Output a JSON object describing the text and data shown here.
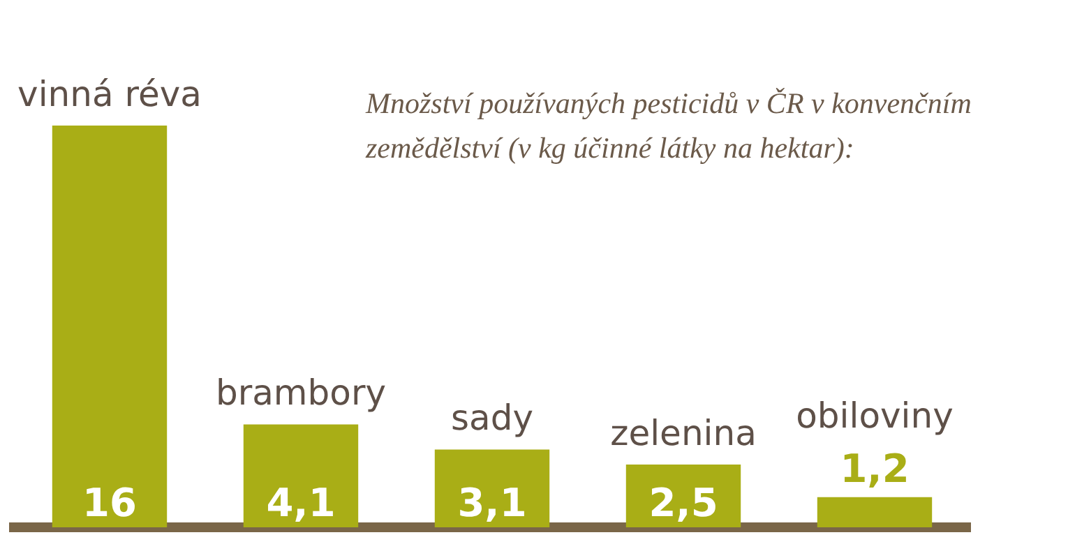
{
  "chart_data": {
    "type": "bar",
    "title": "Množství používaných pesticidů v ČR v konvenčním zemědělství (v kg účinné látky na hektar):",
    "categories": [
      "vinná réva",
      "brambory",
      "sady",
      "zelenina",
      "obiloviny"
    ],
    "values": [
      16,
      4.1,
      3.1,
      2.5,
      1.2
    ],
    "value_labels": [
      "16",
      "4,1",
      "3,1",
      "2,5",
      "1,2"
    ],
    "color": "#a9ae16",
    "legend": false,
    "grid": false
  }
}
